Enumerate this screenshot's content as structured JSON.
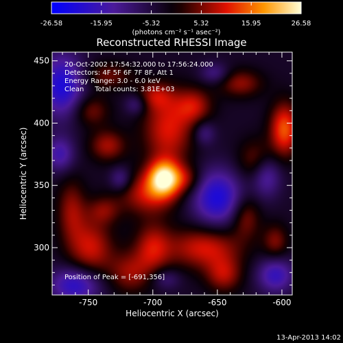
{
  "colorbar": {
    "ticks": [
      "-26.58",
      "-15.95",
      "-5.32",
      "5.32",
      "15.95",
      "26.58"
    ],
    "unit_label": "(photons cm⁻² s⁻¹ asec⁻²)",
    "range": [
      -26.58,
      26.58
    ]
  },
  "info_lines": [
    "20-Oct-2002 17:54:32.000 to 17:56:24.000",
    "Detectors: 4F 5F 6F 7F 8F, Att 1",
    "Energy Range: 3.0 - 6.0 keV",
    "Clean     Total counts: 3.81E+03"
  ],
  "peak_text": "Position of Peak = [-691,356]",
  "timestamp": "13-Apr-2013 14:02",
  "chart_data": {
    "type": "heatmap",
    "title": "Reconstructed RHESSI Image",
    "xlabel": "Heliocentric X (arcsec)",
    "ylabel": "Heliocentric Y (arcsec)",
    "xlim": [
      -778,
      -592
    ],
    "ylim": [
      262,
      457
    ],
    "xticks": [
      -750,
      -700,
      -650,
      -600
    ],
    "yticks": [
      300,
      350,
      400,
      450
    ],
    "xtick_labels": [
      "-750",
      "-700",
      "-650",
      "-600"
    ],
    "ytick_labels": [
      "300",
      "350",
      "400",
      "450"
    ],
    "colormap": "purple-black-red-yellow-white",
    "peak": [
      -691,
      356
    ],
    "sources": [
      {
        "x": -691,
        "y": 356,
        "amp": 26.5,
        "sx": 9,
        "sy": 10
      },
      {
        "x": -703,
        "y": 343,
        "amp": 13,
        "sx": 16,
        "sy": 12
      },
      {
        "x": -688,
        "y": 395,
        "amp": 14,
        "sx": 14,
        "sy": 20
      },
      {
        "x": -668,
        "y": 414,
        "amp": 11,
        "sx": 10,
        "sy": 10
      },
      {
        "x": -698,
        "y": 422,
        "amp": 9,
        "sx": 10,
        "sy": 8
      },
      {
        "x": -735,
        "y": 382,
        "amp": 11,
        "sx": 10,
        "sy": 9
      },
      {
        "x": -748,
        "y": 410,
        "amp": 9,
        "sx": 10,
        "sy": 9
      },
      {
        "x": -763,
        "y": 330,
        "amp": 10,
        "sx": 8,
        "sy": 18
      },
      {
        "x": -748,
        "y": 300,
        "amp": 13,
        "sx": 12,
        "sy": 16
      },
      {
        "x": -738,
        "y": 330,
        "amp": 8,
        "sx": 9,
        "sy": 8
      },
      {
        "x": -718,
        "y": 280,
        "amp": 10,
        "sx": 12,
        "sy": 12
      },
      {
        "x": -700,
        "y": 300,
        "amp": 12,
        "sx": 10,
        "sy": 14
      },
      {
        "x": -660,
        "y": 300,
        "amp": 14,
        "sx": 20,
        "sy": 12
      },
      {
        "x": -645,
        "y": 278,
        "amp": 11,
        "sx": 10,
        "sy": 10
      },
      {
        "x": -628,
        "y": 325,
        "amp": 10,
        "sx": 8,
        "sy": 12
      },
      {
        "x": -620,
        "y": 370,
        "amp": 9,
        "sx": 10,
        "sy": 12
      },
      {
        "x": -598,
        "y": 395,
        "amp": 18,
        "sx": 8,
        "sy": 15
      },
      {
        "x": -632,
        "y": 432,
        "amp": 10,
        "sx": 12,
        "sy": 8
      },
      {
        "x": -605,
        "y": 305,
        "amp": 9,
        "sx": 7,
        "sy": 10
      },
      {
        "x": -735,
        "y": 438,
        "amp": 8,
        "sx": 14,
        "sy": 8
      },
      {
        "x": -673,
        "y": 355,
        "amp": 8,
        "sx": 8,
        "sy": 8
      },
      {
        "x": -770,
        "y": 430,
        "amp": -18,
        "sx": 12,
        "sy": 18
      },
      {
        "x": -772,
        "y": 375,
        "amp": -12,
        "sx": 8,
        "sy": 10
      },
      {
        "x": -760,
        "y": 270,
        "amp": -16,
        "sx": 14,
        "sy": 10
      },
      {
        "x": -650,
        "y": 340,
        "amp": -18,
        "sx": 14,
        "sy": 16
      },
      {
        "x": -612,
        "y": 358,
        "amp": -12,
        "sx": 8,
        "sy": 12
      },
      {
        "x": -605,
        "y": 278,
        "amp": -14,
        "sx": 10,
        "sy": 10
      },
      {
        "x": -660,
        "y": 392,
        "amp": -8,
        "sx": 6,
        "sy": 7
      },
      {
        "x": -725,
        "y": 355,
        "amp": -9,
        "sx": 6,
        "sy": 7
      },
      {
        "x": -713,
        "y": 415,
        "amp": -8,
        "sx": 6,
        "sy": 6
      },
      {
        "x": -652,
        "y": 440,
        "amp": -8,
        "sx": 8,
        "sy": 6
      },
      {
        "x": -690,
        "y": 275,
        "amp": -7,
        "sx": 8,
        "sy": 6
      }
    ]
  }
}
